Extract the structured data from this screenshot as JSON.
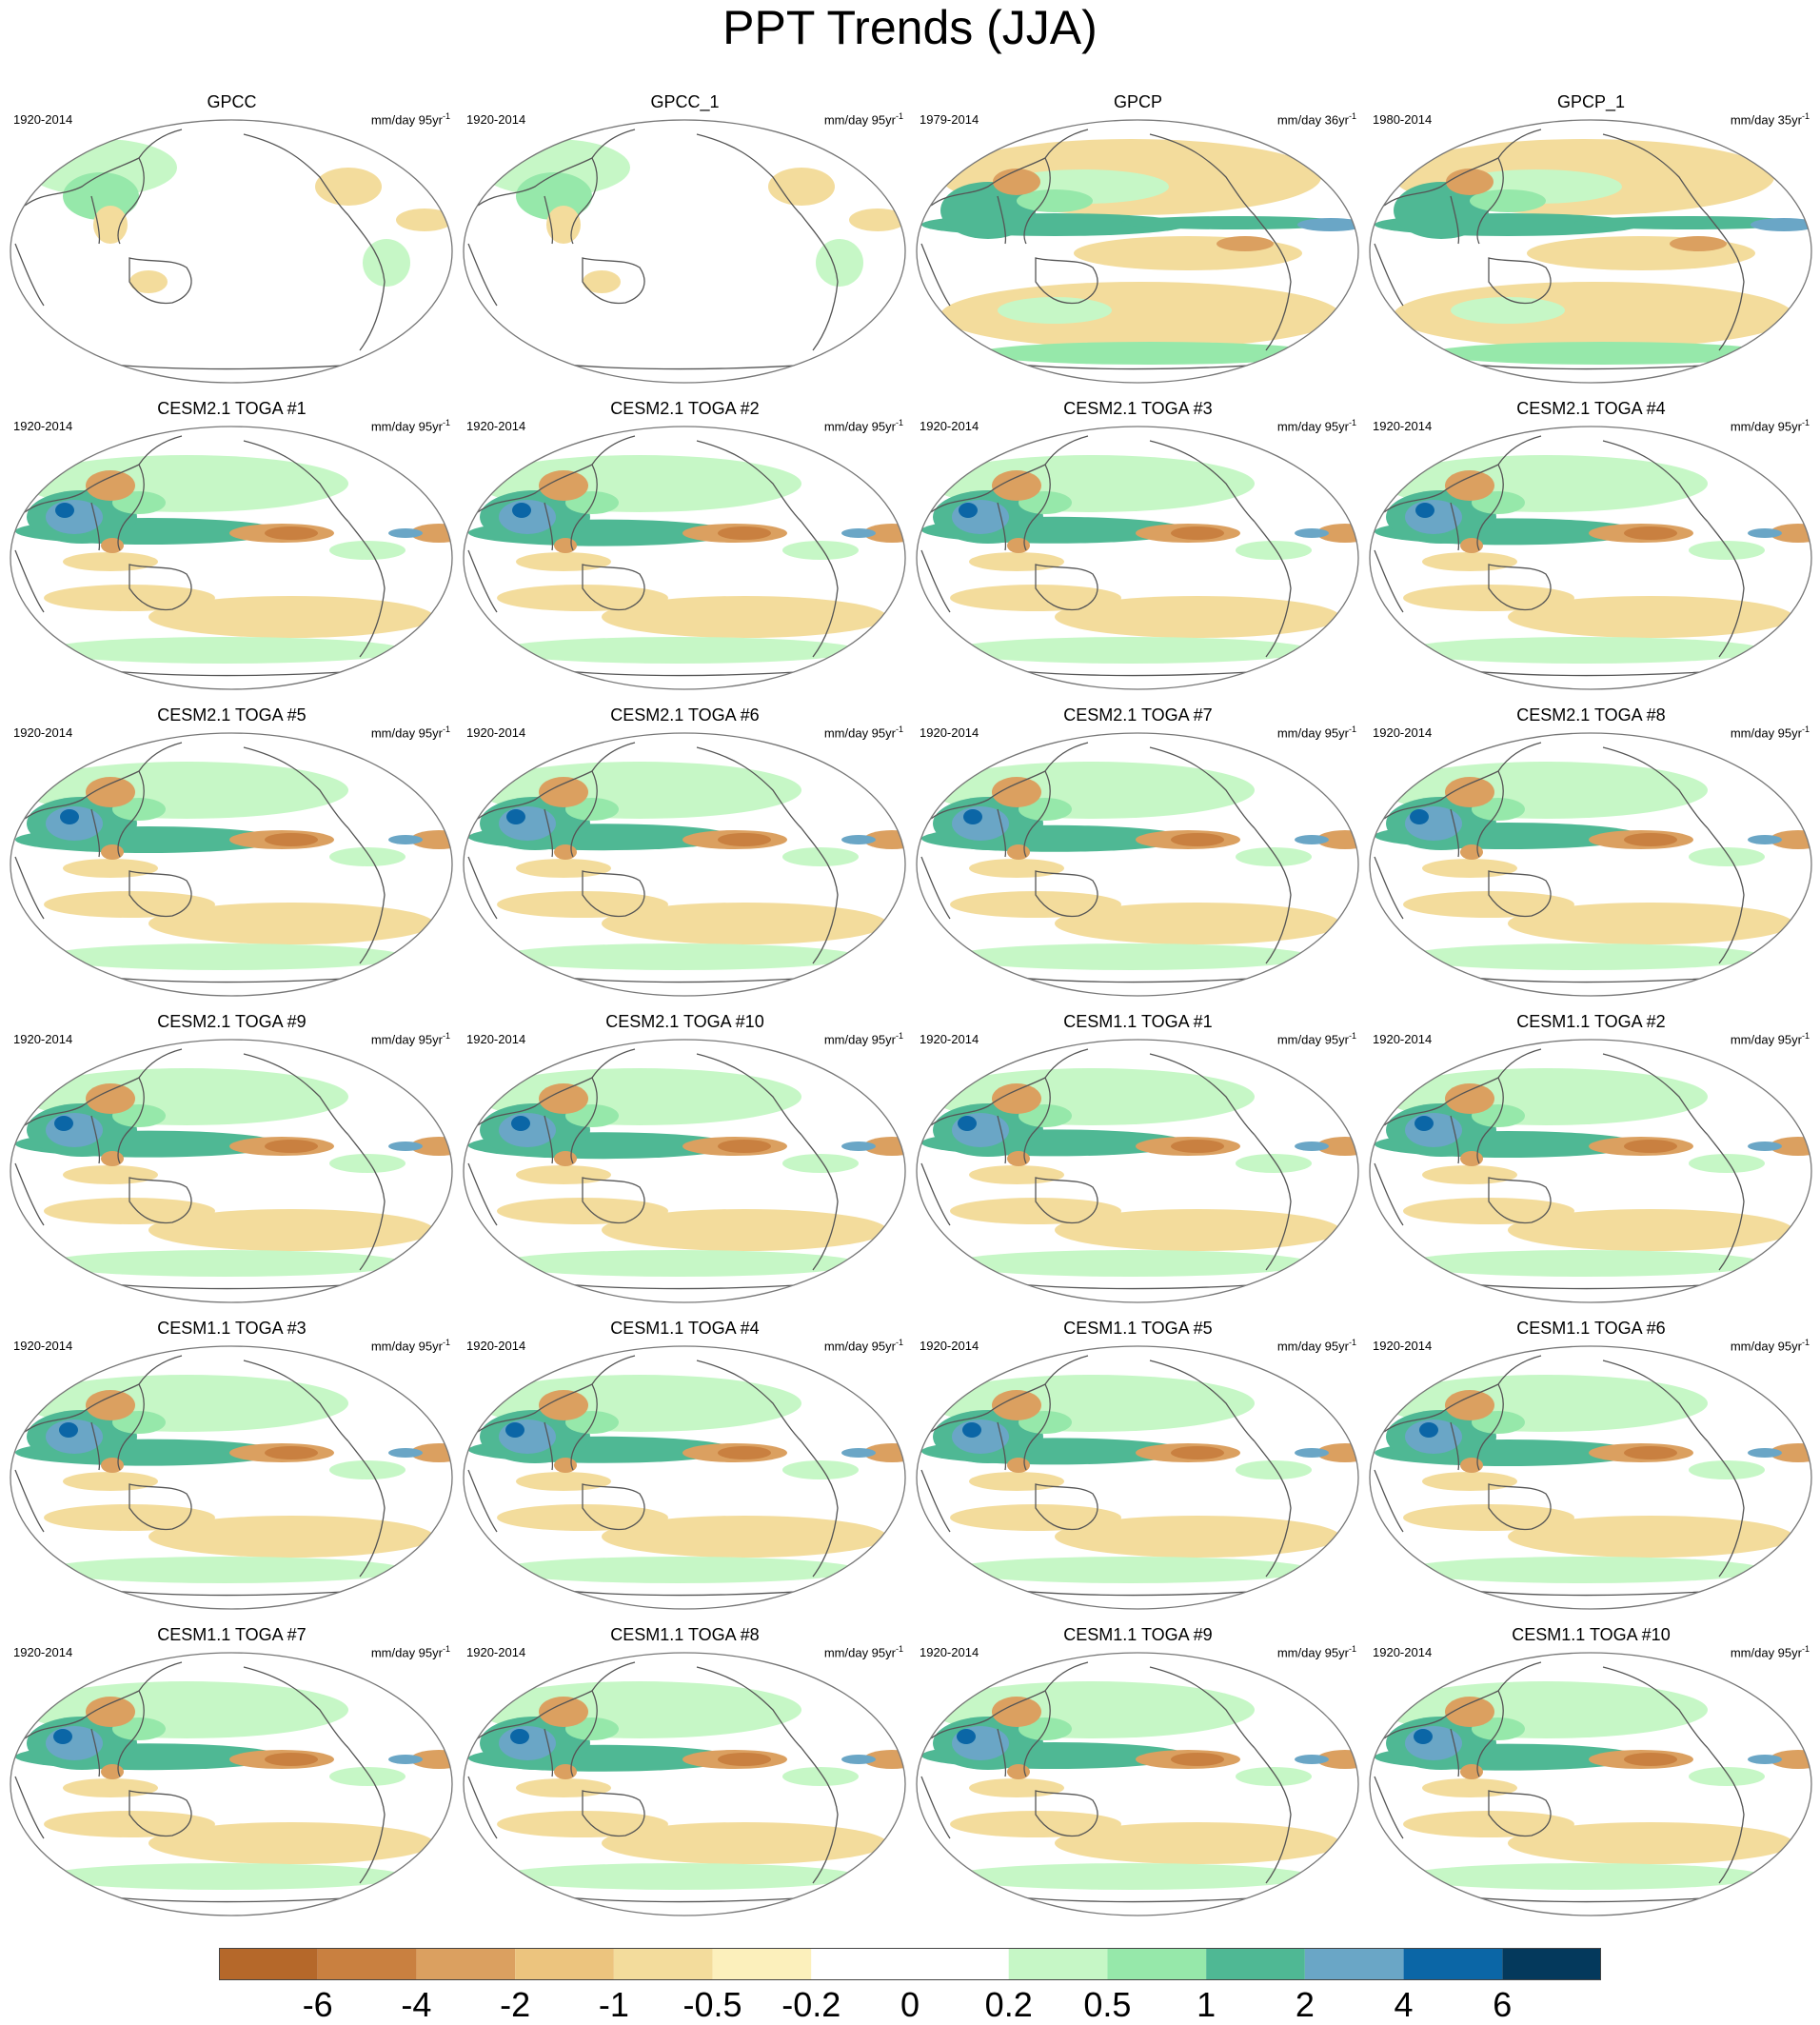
{
  "title": "PPT Trends (JJA)",
  "panels": [
    {
      "name": "GPCC",
      "period": "1920-2014",
      "units": "mm/day 95yr",
      "units_exp": "-1",
      "style": "obs-land"
    },
    {
      "name": "GPCC_1",
      "period": "1920-2014",
      "units": "mm/day 95yr",
      "units_exp": "-1",
      "style": "obs-land"
    },
    {
      "name": "GPCP",
      "period": "1979-2014",
      "units": "mm/day 36yr",
      "units_exp": "-1",
      "style": "obs-global"
    },
    {
      "name": "GPCP_1",
      "period": "1980-2014",
      "units": "mm/day 35yr",
      "units_exp": "-1",
      "style": "obs-global"
    },
    {
      "name": "CESM2.1 TOGA #1",
      "period": "1920-2014",
      "units": "mm/day 95yr",
      "units_exp": "-1",
      "style": "model"
    },
    {
      "name": "CESM2.1 TOGA #2",
      "period": "1920-2014",
      "units": "mm/day 95yr",
      "units_exp": "-1",
      "style": "model"
    },
    {
      "name": "CESM2.1 TOGA #3",
      "period": "1920-2014",
      "units": "mm/day 95yr",
      "units_exp": "-1",
      "style": "model"
    },
    {
      "name": "CESM2.1 TOGA #4",
      "period": "1920-2014",
      "units": "mm/day 95yr",
      "units_exp": "-1",
      "style": "model"
    },
    {
      "name": "CESM2.1 TOGA #5",
      "period": "1920-2014",
      "units": "mm/day 95yr",
      "units_exp": "-1",
      "style": "model"
    },
    {
      "name": "CESM2.1 TOGA #6",
      "period": "1920-2014",
      "units": "mm/day 95yr",
      "units_exp": "-1",
      "style": "model"
    },
    {
      "name": "CESM2.1 TOGA #7",
      "period": "1920-2014",
      "units": "mm/day 95yr",
      "units_exp": "-1",
      "style": "model"
    },
    {
      "name": "CESM2.1 TOGA #8",
      "period": "1920-2014",
      "units": "mm/day 95yr",
      "units_exp": "-1",
      "style": "model"
    },
    {
      "name": "CESM2.1 TOGA #9",
      "period": "1920-2014",
      "units": "mm/day 95yr",
      "units_exp": "-1",
      "style": "model"
    },
    {
      "name": "CESM2.1 TOGA #10",
      "period": "1920-2014",
      "units": "mm/day 95yr",
      "units_exp": "-1",
      "style": "model"
    },
    {
      "name": "CESM1.1 TOGA #1",
      "period": "1920-2014",
      "units": "mm/day 95yr",
      "units_exp": "-1",
      "style": "model"
    },
    {
      "name": "CESM1.1 TOGA #2",
      "period": "1920-2014",
      "units": "mm/day 95yr",
      "units_exp": "-1",
      "style": "model"
    },
    {
      "name": "CESM1.1 TOGA #3",
      "period": "1920-2014",
      "units": "mm/day 95yr",
      "units_exp": "-1",
      "style": "model"
    },
    {
      "name": "CESM1.1 TOGA #4",
      "period": "1920-2014",
      "units": "mm/day 95yr",
      "units_exp": "-1",
      "style": "model"
    },
    {
      "name": "CESM1.1 TOGA #5",
      "period": "1920-2014",
      "units": "mm/day 95yr",
      "units_exp": "-1",
      "style": "model"
    },
    {
      "name": "CESM1.1 TOGA #6",
      "period": "1920-2014",
      "units": "mm/day 95yr",
      "units_exp": "-1",
      "style": "model"
    },
    {
      "name": "CESM1.1 TOGA #7",
      "period": "1920-2014",
      "units": "mm/day 95yr",
      "units_exp": "-1",
      "style": "model"
    },
    {
      "name": "CESM1.1 TOGA #8",
      "period": "1920-2014",
      "units": "mm/day 95yr",
      "units_exp": "-1",
      "style": "model"
    },
    {
      "name": "CESM1.1 TOGA #9",
      "period": "1920-2014",
      "units": "mm/day 95yr",
      "units_exp": "-1",
      "style": "model"
    },
    {
      "name": "CESM1.1 TOGA #10",
      "period": "1920-2014",
      "units": "mm/day 95yr",
      "units_exp": "-1",
      "style": "model"
    }
  ],
  "colorbar": {
    "labels": [
      "-6",
      "-4",
      "-2",
      "-1",
      "-0.5",
      "-0.2",
      "0",
      "0.2",
      "0.5",
      "1",
      "2",
      "4",
      "6"
    ],
    "colors": [
      "#b5682a",
      "#c98040",
      "#dba060",
      "#ecc47e",
      "#f3dc9c",
      "#fcf0bc",
      "#ffffff",
      "#ffffff",
      "#c6f7c6",
      "#96e8aa",
      "#4fb894",
      "#6aa6c6",
      "#0b66a6",
      "#04395c"
    ]
  },
  "map_colors": {
    "neg_strong": "#c98040",
    "neg_mid": "#dba060",
    "neg_weak": "#f3dc9c",
    "pos_weak": "#c6f7c6",
    "pos_mid": "#96e8aa",
    "pos_strong": "#4fb894",
    "pos_heavy": "#6aa6c6",
    "pos_extreme": "#0b66a6",
    "coast": "#555555",
    "border": "#777777"
  }
}
